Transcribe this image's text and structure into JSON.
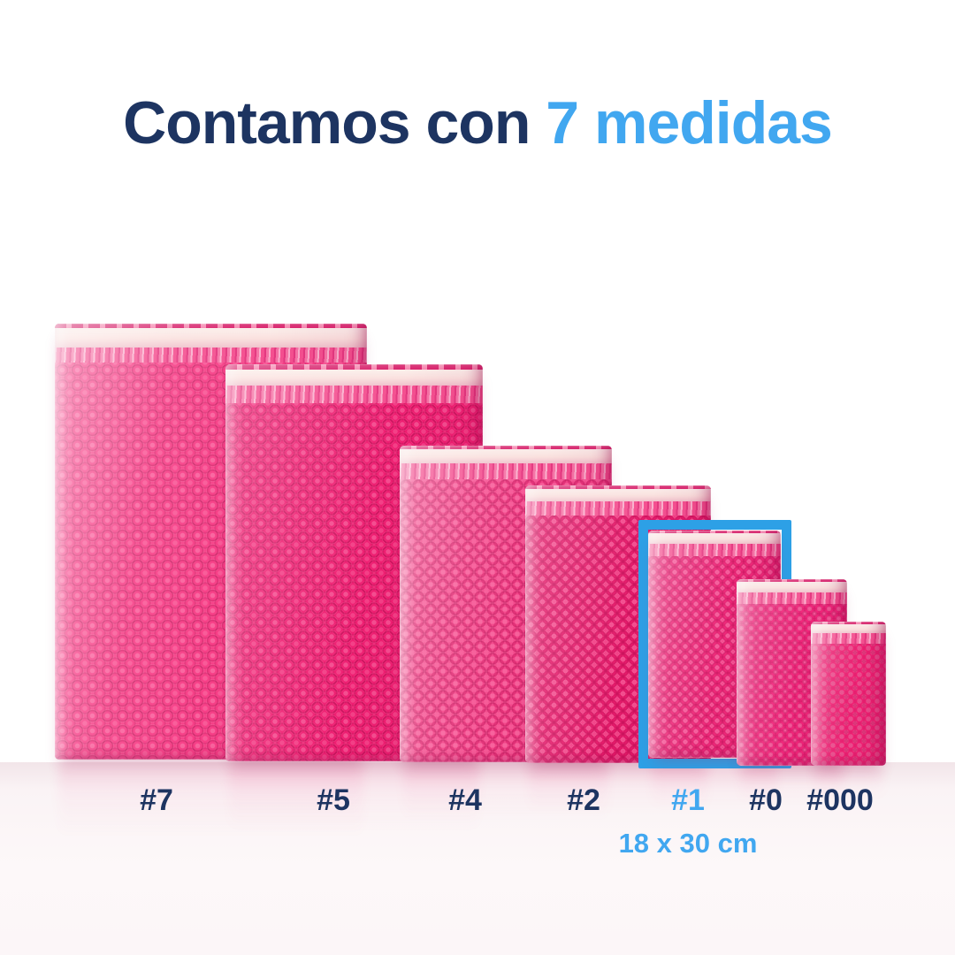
{
  "title": {
    "prefix": "Contamos con",
    "highlight": "7 medidas"
  },
  "envelopes": [
    {
      "label": "#7"
    },
    {
      "label": "#5"
    },
    {
      "label": "#4"
    },
    {
      "label": "#2"
    },
    {
      "label": "#1",
      "highlighted": true,
      "size": "18 x 30 cm"
    },
    {
      "label": "#0"
    },
    {
      "label": "#000"
    }
  ],
  "colors": {
    "navy": "#1d3461",
    "light_blue": "#41a7f0",
    "frame_blue": "#2da0e6",
    "pink_body": "#f0206f",
    "seal_strip": "#fae0de",
    "floor": "#faf3f5"
  }
}
